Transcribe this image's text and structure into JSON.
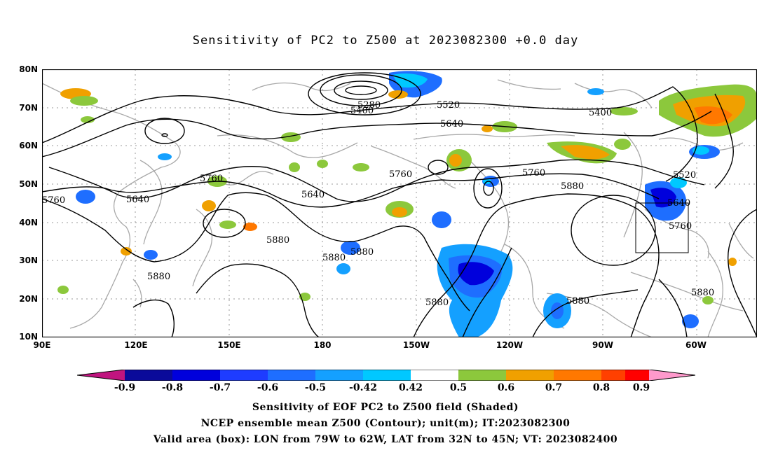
{
  "title": "Sensitivity of PC2 to Z500 at 2023082300 +0.0 day",
  "lat_ticks": [
    "80N",
    "70N",
    "60N",
    "50N",
    "40N",
    "30N",
    "20N",
    "10N"
  ],
  "lon_ticks": [
    "90E",
    "120E",
    "150E",
    "180",
    "150W",
    "120W",
    "90W",
    "60W"
  ],
  "contour_labels": [
    "5280",
    "5400",
    "5520",
    "5640",
    "5400",
    "5640",
    "5760",
    "5760",
    "5640",
    "5760",
    "5760",
    "5880",
    "5520",
    "5640",
    "5760",
    "5880",
    "5880",
    "5880",
    "5880",
    "5880",
    "5880",
    "5880",
    "5640"
  ],
  "colorbar": {
    "labels": [
      "-0.9",
      "-0.8",
      "-0.7",
      "-0.6",
      "-0.5",
      "-0.42",
      "0.42",
      "0.5",
      "0.6",
      "0.7",
      "0.8",
      "0.9"
    ],
    "colors": [
      "#c0147f",
      "#0a0a9a",
      "#0000dc",
      "#1e3cff",
      "#1e6eff",
      "#14a0ff",
      "#00c8ff",
      "#ffffff",
      "#8cc83c",
      "#f0a000",
      "#ff7800",
      "#ff4000",
      "#ff0000",
      "#ff99cc"
    ]
  },
  "captions": [
    "Sensitivity of EOF PC2 to Z500 field (Shaded)",
    "NCEP ensemble mean Z500 (Contour); unit(m); IT:2023082300",
    "Valid area (box): LON from 79W to 62W, LAT from 32N to 45N; VT: 2023082400"
  ],
  "valid_box": {
    "lon_range": [
      "79W",
      "62W"
    ],
    "lat_range": [
      "32N",
      "45N"
    ]
  }
}
